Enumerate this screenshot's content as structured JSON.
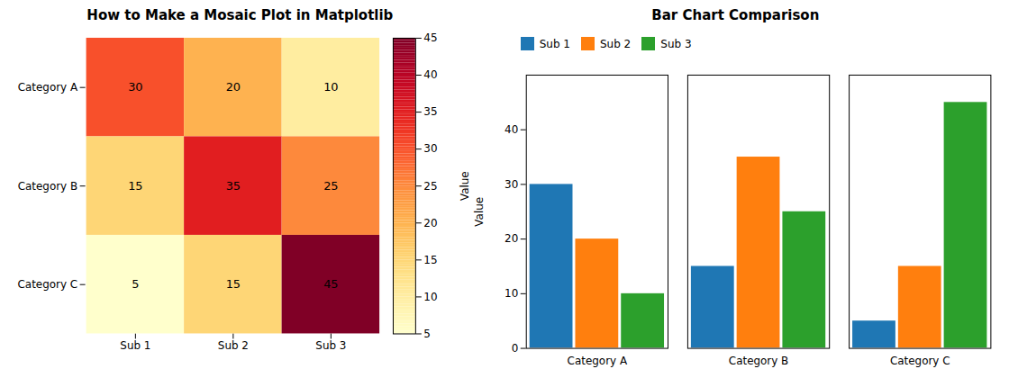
{
  "chart_data": [
    {
      "type": "heatmap",
      "title": "How to Make a Mosaic Plot in Matplotlib",
      "categories": [
        "Sub 1",
        "Sub 2",
        "Sub 3"
      ],
      "rows": [
        "Category A",
        "Category B",
        "Category C"
      ],
      "values": [
        [
          30,
          20,
          10
        ],
        [
          15,
          35,
          25
        ],
        [
          5,
          15,
          45
        ]
      ],
      "color": "YlOrRd",
      "colorbar_label": "Value",
      "colorbar_lim": [
        5,
        45
      ],
      "colorbar_ticks": [
        5,
        10,
        15,
        20,
        25,
        30,
        35,
        40,
        45
      ],
      "data_labels": true
    },
    {
      "type": "bar",
      "title": "Bar Chart Comparison",
      "categories": [
        "Category A",
        "Category B",
        "Category C"
      ],
      "series": [
        {
          "name": "Sub 1",
          "color": "#1f77b4",
          "values": [
            30,
            15,
            5
          ]
        },
        {
          "name": "Sub 2",
          "color": "#ff7f0e",
          "values": [
            20,
            35,
            15
          ]
        },
        {
          "name": "Sub 3",
          "color": "#2ca02c",
          "values": [
            10,
            25,
            45
          ]
        }
      ],
      "ylabel": "Value",
      "ylim": [
        0,
        50
      ],
      "yticks": [
        0,
        10,
        20,
        30,
        40
      ],
      "legend": "upper left"
    }
  ]
}
